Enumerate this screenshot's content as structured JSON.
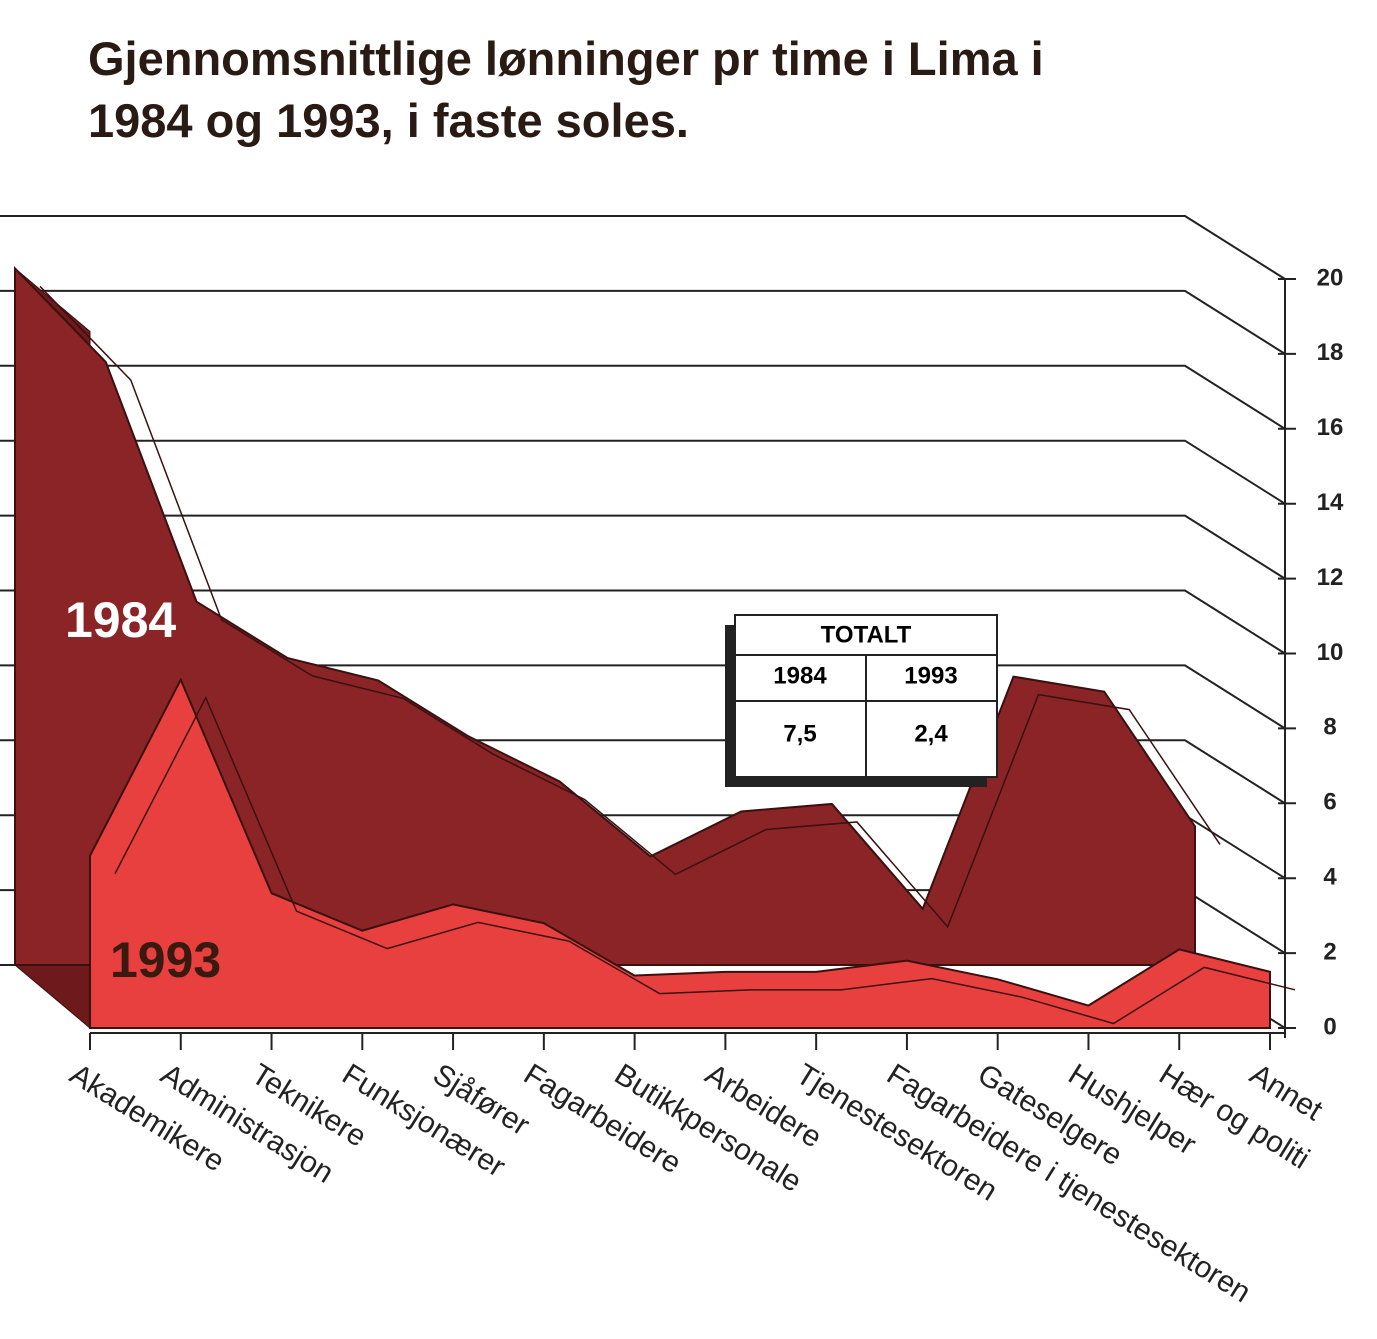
{
  "chart_data": {
    "type": "area3d",
    "title": "Gjennomsnittlige lønninger pr time i Lima i 1984 og 1993, i faste soles.",
    "categories": [
      "Akademikere",
      "Administrasjon",
      "Teknikere",
      "Funksjonærer",
      "Sjåfører",
      "Fagarbeidere",
      "Butikkpersonale",
      "Arbeidere",
      "Tjenestesektoren",
      "Fagarbeidere i tjenestesektoren",
      "Gateselgere",
      "Hushjelper",
      "Hær og politi",
      "Annet"
    ],
    "series": [
      {
        "name": "1984",
        "color": "#8b2427",
        "values": [
          18.6,
          16.1,
          9.7,
          8.2,
          7.6,
          6.1,
          4.9,
          2.9,
          4.1,
          4.3,
          1.5,
          7.7,
          7.3,
          3.7
        ]
      },
      {
        "name": "1993",
        "color": "#e8403e",
        "values": [
          4.6,
          9.3,
          3.6,
          2.6,
          3.3,
          2.8,
          1.4,
          1.5,
          1.5,
          1.8,
          1.3,
          0.6,
          2.1,
          1.5
        ]
      }
    ],
    "ylim": [
      0,
      20
    ],
    "yticks": [
      0,
      2,
      4,
      6,
      8,
      10,
      12,
      14,
      16,
      18,
      20
    ],
    "grid": true,
    "totals": {
      "title": "TOTALT",
      "columns": [
        "1984",
        "1993"
      ],
      "values": [
        "7,5",
        "2,4"
      ]
    }
  }
}
